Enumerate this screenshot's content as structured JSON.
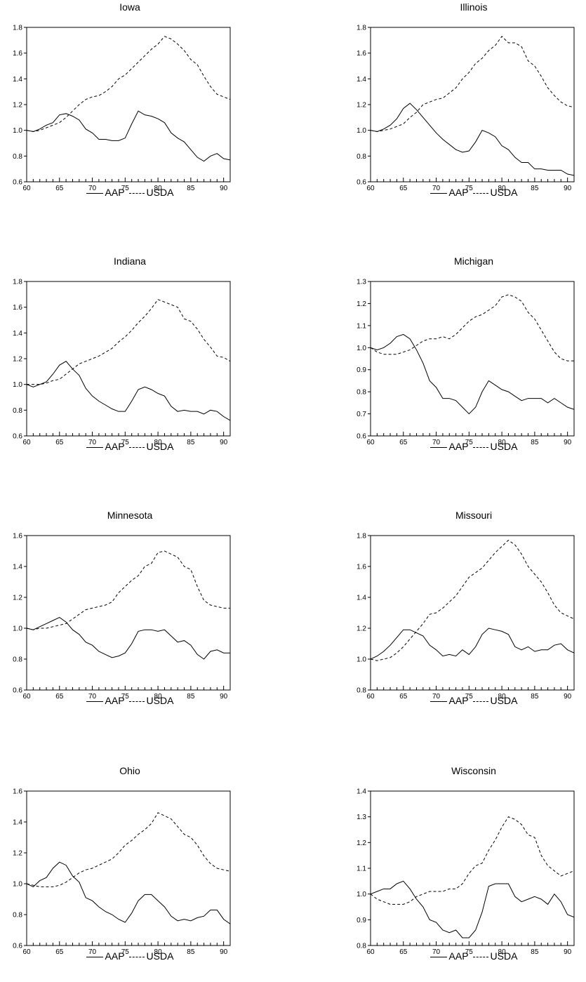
{
  "chart_data": [
    {
      "type": "line",
      "title": "Iowa",
      "ylim": [
        0.6,
        1.8
      ],
      "yticks": [
        "0.6",
        "0.8",
        "1.0",
        "1.2",
        "1.4",
        "1.6",
        "1.8"
      ],
      "xlim": [
        1960,
        1991
      ],
      "xtick_labels": [
        "60",
        "65",
        "70",
        "75",
        "80",
        "85",
        "90"
      ],
      "x": [
        1960,
        1961,
        1962,
        1963,
        1964,
        1965,
        1966,
        1967,
        1968,
        1969,
        1970,
        1971,
        1972,
        1973,
        1974,
        1975,
        1976,
        1977,
        1978,
        1979,
        1980,
        1981,
        1982,
        1983,
        1984,
        1985,
        1986,
        1987,
        1988,
        1989,
        1990,
        1991
      ],
      "legend": "bottom",
      "series": [
        {
          "name": "AAP",
          "style": "solid",
          "values": [
            1.0,
            0.99,
            1.01,
            1.04,
            1.06,
            1.12,
            1.13,
            1.11,
            1.08,
            1.01,
            0.98,
            0.93,
            0.93,
            0.92,
            0.92,
            0.94,
            1.05,
            1.15,
            1.12,
            1.11,
            1.09,
            1.06,
            0.98,
            0.94,
            0.91,
            0.85,
            0.79,
            0.76,
            0.8,
            0.82,
            0.78,
            0.77
          ]
        },
        {
          "name": "USDA",
          "style": "dashed",
          "values": [
            1.0,
            0.99,
            1.0,
            1.02,
            1.04,
            1.06,
            1.1,
            1.15,
            1.2,
            1.24,
            1.26,
            1.27,
            1.3,
            1.34,
            1.4,
            1.43,
            1.48,
            1.53,
            1.58,
            1.63,
            1.67,
            1.73,
            1.71,
            1.67,
            1.62,
            1.55,
            1.51,
            1.42,
            1.34,
            1.28,
            1.26,
            1.24
          ]
        }
      ]
    },
    {
      "type": "line",
      "title": "Illinois",
      "ylim": [
        0.6,
        1.8
      ],
      "yticks": [
        "0.6",
        "0.8",
        "1.0",
        "1.2",
        "1.4",
        "1.6",
        "1.8"
      ],
      "xlim": [
        1960,
        1991
      ],
      "xtick_labels": [
        "60",
        "65",
        "70",
        "75",
        "80",
        "85",
        "90"
      ],
      "x": [
        1960,
        1961,
        1962,
        1963,
        1964,
        1965,
        1966,
        1967,
        1968,
        1969,
        1970,
        1971,
        1972,
        1973,
        1974,
        1975,
        1976,
        1977,
        1978,
        1979,
        1980,
        1981,
        1982,
        1983,
        1984,
        1985,
        1986,
        1987,
        1988,
        1989,
        1990,
        1991
      ],
      "legend": "bottom",
      "series": [
        {
          "name": "AAP",
          "style": "solid",
          "values": [
            1.0,
            0.99,
            1.01,
            1.04,
            1.09,
            1.17,
            1.21,
            1.16,
            1.1,
            1.04,
            0.98,
            0.93,
            0.89,
            0.85,
            0.83,
            0.84,
            0.91,
            1.0,
            0.98,
            0.95,
            0.88,
            0.85,
            0.79,
            0.75,
            0.75,
            0.7,
            0.7,
            0.69,
            0.69,
            0.69,
            0.66,
            0.65
          ]
        },
        {
          "name": "USDA",
          "style": "dashed",
          "values": [
            1.0,
            0.99,
            1.0,
            1.01,
            1.03,
            1.05,
            1.1,
            1.14,
            1.2,
            1.22,
            1.24,
            1.25,
            1.29,
            1.33,
            1.4,
            1.45,
            1.52,
            1.56,
            1.62,
            1.66,
            1.73,
            1.68,
            1.68,
            1.65,
            1.54,
            1.5,
            1.42,
            1.33,
            1.27,
            1.22,
            1.19,
            1.18
          ]
        }
      ]
    },
    {
      "type": "line",
      "title": "Indiana",
      "ylim": [
        0.6,
        1.8
      ],
      "yticks": [
        "0.6",
        "0.8",
        "1.0",
        "1.2",
        "1.4",
        "1.6",
        "1.8"
      ],
      "xlim": [
        1960,
        1991
      ],
      "xtick_labels": [
        "60",
        "65",
        "70",
        "75",
        "80",
        "85",
        "90"
      ],
      "x": [
        1960,
        1961,
        1962,
        1963,
        1964,
        1965,
        1966,
        1967,
        1968,
        1969,
        1970,
        1971,
        1972,
        1973,
        1974,
        1975,
        1976,
        1977,
        1978,
        1979,
        1980,
        1981,
        1982,
        1983,
        1984,
        1985,
        1986,
        1987,
        1988,
        1989,
        1990,
        1991
      ],
      "legend": "bottom",
      "series": [
        {
          "name": "AAP",
          "style": "solid",
          "values": [
            1.0,
            0.98,
            1.0,
            1.02,
            1.08,
            1.15,
            1.18,
            1.12,
            1.07,
            0.97,
            0.91,
            0.87,
            0.84,
            0.81,
            0.79,
            0.79,
            0.87,
            0.96,
            0.98,
            0.96,
            0.93,
            0.91,
            0.83,
            0.79,
            0.8,
            0.79,
            0.79,
            0.77,
            0.8,
            0.79,
            0.75,
            0.72
          ]
        },
        {
          "name": "USDA",
          "style": "dashed",
          "values": [
            1.0,
            1.0,
            1.0,
            1.01,
            1.03,
            1.04,
            1.08,
            1.12,
            1.16,
            1.18,
            1.2,
            1.22,
            1.25,
            1.28,
            1.33,
            1.37,
            1.42,
            1.48,
            1.53,
            1.59,
            1.66,
            1.64,
            1.62,
            1.6,
            1.51,
            1.49,
            1.43,
            1.35,
            1.29,
            1.22,
            1.21,
            1.18
          ]
        }
      ]
    },
    {
      "type": "line",
      "title": "Michigan",
      "ylim": [
        0.6,
        1.3
      ],
      "yticks": [
        "0.6",
        "0.7",
        "0.8",
        "0.9",
        "1.0",
        "1.1",
        "1.2",
        "1.3"
      ],
      "xlim": [
        1960,
        1991
      ],
      "xtick_labels": [
        "60",
        "65",
        "70",
        "75",
        "80",
        "85",
        "90"
      ],
      "x": [
        1960,
        1961,
        1962,
        1963,
        1964,
        1965,
        1966,
        1967,
        1968,
        1969,
        1970,
        1971,
        1972,
        1973,
        1974,
        1975,
        1976,
        1977,
        1978,
        1979,
        1980,
        1981,
        1982,
        1983,
        1984,
        1985,
        1986,
        1987,
        1988,
        1989,
        1990,
        1991
      ],
      "legend": "bottom",
      "series": [
        {
          "name": "AAP",
          "style": "solid",
          "values": [
            1.0,
            0.99,
            1.0,
            1.02,
            1.05,
            1.06,
            1.04,
            0.99,
            0.93,
            0.85,
            0.82,
            0.77,
            0.77,
            0.76,
            0.73,
            0.7,
            0.73,
            0.8,
            0.85,
            0.83,
            0.81,
            0.8,
            0.78,
            0.76,
            0.77,
            0.77,
            0.77,
            0.75,
            0.77,
            0.75,
            0.73,
            0.72
          ]
        },
        {
          "name": "USDA",
          "style": "dashed",
          "values": [
            1.0,
            0.98,
            0.97,
            0.97,
            0.97,
            0.98,
            0.99,
            1.01,
            1.03,
            1.04,
            1.04,
            1.05,
            1.04,
            1.06,
            1.09,
            1.12,
            1.14,
            1.15,
            1.17,
            1.19,
            1.23,
            1.24,
            1.23,
            1.21,
            1.16,
            1.13,
            1.08,
            1.03,
            0.98,
            0.95,
            0.94,
            0.94
          ]
        }
      ]
    },
    {
      "type": "line",
      "title": "Minnesota",
      "ylim": [
        0.6,
        1.6
      ],
      "yticks": [
        "0.6",
        "0.8",
        "1.0",
        "1.2",
        "1.4",
        "1.6"
      ],
      "xlim": [
        1960,
        1991
      ],
      "xtick_labels": [
        "60",
        "65",
        "70",
        "75",
        "80",
        "85",
        "90"
      ],
      "x": [
        1960,
        1961,
        1962,
        1963,
        1964,
        1965,
        1966,
        1967,
        1968,
        1969,
        1970,
        1971,
        1972,
        1973,
        1974,
        1975,
        1976,
        1977,
        1978,
        1979,
        1980,
        1981,
        1982,
        1983,
        1984,
        1985,
        1986,
        1987,
        1988,
        1989,
        1990,
        1991
      ],
      "legend": "bottom",
      "series": [
        {
          "name": "AAP",
          "style": "solid",
          "values": [
            1.0,
            0.99,
            1.01,
            1.03,
            1.05,
            1.07,
            1.04,
            0.99,
            0.96,
            0.91,
            0.89,
            0.85,
            0.83,
            0.81,
            0.82,
            0.84,
            0.9,
            0.98,
            0.99,
            0.99,
            0.98,
            0.99,
            0.95,
            0.91,
            0.92,
            0.89,
            0.83,
            0.8,
            0.85,
            0.86,
            0.84,
            0.84
          ]
        },
        {
          "name": "USDA",
          "style": "dashed",
          "values": [
            1.0,
            0.99,
            1.0,
            1.0,
            1.01,
            1.02,
            1.03,
            1.06,
            1.09,
            1.12,
            1.13,
            1.14,
            1.15,
            1.17,
            1.23,
            1.27,
            1.31,
            1.34,
            1.4,
            1.42,
            1.49,
            1.5,
            1.48,
            1.46,
            1.4,
            1.38,
            1.27,
            1.18,
            1.15,
            1.14,
            1.13,
            1.13
          ]
        }
      ]
    },
    {
      "type": "line",
      "title": "Missouri",
      "ylim": [
        0.8,
        1.8
      ],
      "yticks": [
        "0.8",
        "1.0",
        "1.2",
        "1.4",
        "1.6",
        "1.8"
      ],
      "xlim": [
        1960,
        1991
      ],
      "xtick_labels": [
        "60",
        "65",
        "70",
        "75",
        "80",
        "85",
        "90"
      ],
      "x": [
        1960,
        1961,
        1962,
        1963,
        1964,
        1965,
        1966,
        1967,
        1968,
        1969,
        1970,
        1971,
        1972,
        1973,
        1974,
        1975,
        1976,
        1977,
        1978,
        1979,
        1980,
        1981,
        1982,
        1983,
        1984,
        1985,
        1986,
        1987,
        1988,
        1989,
        1990,
        1991
      ],
      "legend": "bottom",
      "series": [
        {
          "name": "AAP",
          "style": "solid",
          "values": [
            1.0,
            1.02,
            1.05,
            1.09,
            1.14,
            1.19,
            1.19,
            1.17,
            1.15,
            1.09,
            1.06,
            1.02,
            1.03,
            1.02,
            1.06,
            1.03,
            1.08,
            1.16,
            1.2,
            1.19,
            1.18,
            1.16,
            1.08,
            1.06,
            1.08,
            1.05,
            1.06,
            1.06,
            1.09,
            1.1,
            1.06,
            1.04
          ]
        },
        {
          "name": "USDA",
          "style": "dashed",
          "values": [
            1.0,
            0.99,
            1.0,
            1.01,
            1.04,
            1.08,
            1.13,
            1.18,
            1.23,
            1.29,
            1.3,
            1.33,
            1.37,
            1.41,
            1.47,
            1.53,
            1.56,
            1.59,
            1.64,
            1.69,
            1.73,
            1.77,
            1.74,
            1.68,
            1.6,
            1.55,
            1.5,
            1.43,
            1.35,
            1.3,
            1.28,
            1.26
          ]
        }
      ]
    },
    {
      "type": "line",
      "title": "Ohio",
      "ylim": [
        0.6,
        1.6
      ],
      "yticks": [
        "0.6",
        "0.8",
        "1.0",
        "1.2",
        "1.4",
        "1.6"
      ],
      "xlim": [
        1960,
        1991
      ],
      "xtick_labels": [
        "60",
        "65",
        "70",
        "75",
        "80",
        "85",
        "90"
      ],
      "x": [
        1960,
        1961,
        1962,
        1963,
        1964,
        1965,
        1966,
        1967,
        1968,
        1969,
        1970,
        1971,
        1972,
        1973,
        1974,
        1975,
        1976,
        1977,
        1978,
        1979,
        1980,
        1981,
        1982,
        1983,
        1984,
        1985,
        1986,
        1987,
        1988,
        1989,
        1990,
        1991
      ],
      "legend": "bottom",
      "series": [
        {
          "name": "AAP",
          "style": "solid",
          "values": [
            1.0,
            0.98,
            1.02,
            1.04,
            1.1,
            1.14,
            1.12,
            1.05,
            1.01,
            0.91,
            0.89,
            0.85,
            0.82,
            0.8,
            0.77,
            0.75,
            0.81,
            0.89,
            0.93,
            0.93,
            0.89,
            0.85,
            0.79,
            0.76,
            0.77,
            0.76,
            0.78,
            0.79,
            0.83,
            0.83,
            0.77,
            0.74
          ]
        },
        {
          "name": "USDA",
          "style": "dashed",
          "values": [
            1.0,
            0.99,
            0.98,
            0.98,
            0.98,
            0.99,
            1.01,
            1.04,
            1.07,
            1.09,
            1.1,
            1.12,
            1.14,
            1.16,
            1.2,
            1.25,
            1.28,
            1.32,
            1.35,
            1.39,
            1.46,
            1.44,
            1.42,
            1.37,
            1.32,
            1.3,
            1.25,
            1.18,
            1.13,
            1.1,
            1.09,
            1.08
          ]
        }
      ]
    },
    {
      "type": "line",
      "title": "Wisconsin",
      "ylim": [
        0.8,
        1.4
      ],
      "yticks": [
        "0.8",
        "0.9",
        "1.0",
        "1.1",
        "1.2",
        "1.3",
        "1.4"
      ],
      "xlim": [
        1960,
        1991
      ],
      "xtick_labels": [
        "60",
        "65",
        "70",
        "75",
        "80",
        "85",
        "90"
      ],
      "x": [
        1960,
        1961,
        1962,
        1963,
        1964,
        1965,
        1966,
        1967,
        1968,
        1969,
        1970,
        1971,
        1972,
        1973,
        1974,
        1975,
        1976,
        1977,
        1978,
        1979,
        1980,
        1981,
        1982,
        1983,
        1984,
        1985,
        1986,
        1987,
        1988,
        1989,
        1990,
        1991
      ],
      "legend": "bottom",
      "series": [
        {
          "name": "AAP",
          "style": "solid",
          "values": [
            1.0,
            1.01,
            1.02,
            1.02,
            1.04,
            1.05,
            1.02,
            0.98,
            0.95,
            0.9,
            0.89,
            0.86,
            0.85,
            0.86,
            0.83,
            0.83,
            0.86,
            0.93,
            1.03,
            1.04,
            1.04,
            1.04,
            0.99,
            0.97,
            0.98,
            0.99,
            0.98,
            0.96,
            1.0,
            0.97,
            0.92,
            0.91
          ]
        },
        {
          "name": "USDA",
          "style": "dashed",
          "values": [
            1.0,
            0.98,
            0.97,
            0.96,
            0.96,
            0.96,
            0.97,
            0.99,
            1.0,
            1.01,
            1.01,
            1.01,
            1.02,
            1.02,
            1.04,
            1.08,
            1.11,
            1.12,
            1.17,
            1.21,
            1.26,
            1.3,
            1.29,
            1.27,
            1.23,
            1.22,
            1.15,
            1.11,
            1.09,
            1.07,
            1.08,
            1.09
          ]
        }
      ]
    }
  ]
}
